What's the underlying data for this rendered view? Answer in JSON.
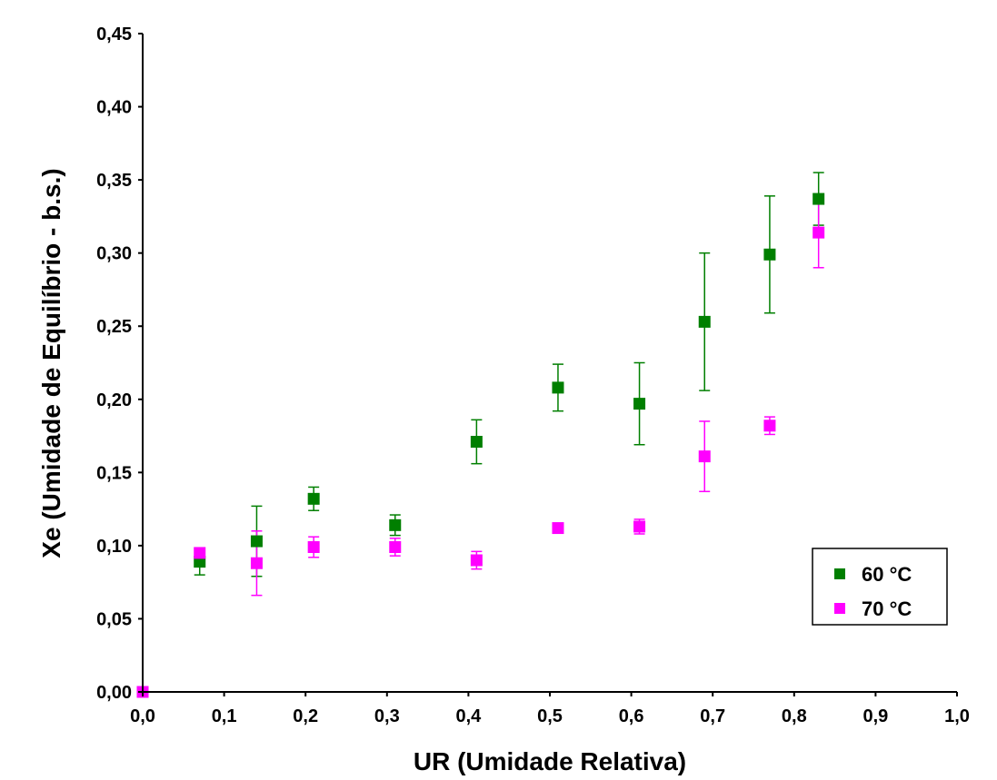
{
  "chart_data": {
    "type": "scatter",
    "title": "",
    "xlabel": "UR (Umidade Relativa)",
    "ylabel": "Xe (Umidade de Equilíbrio - b.s.)",
    "xlim": [
      0.0,
      1.0
    ],
    "ylim": [
      0.0,
      0.45
    ],
    "x_ticks": [
      "0,0",
      "0,1",
      "0,2",
      "0,3",
      "0,4",
      "0,5",
      "0,6",
      "0,7",
      "0,8",
      "0,9",
      "1,0"
    ],
    "y_ticks": [
      "0,00",
      "0,05",
      "0,10",
      "0,15",
      "0,20",
      "0,25",
      "0,30",
      "0,35",
      "0,40",
      "0,45"
    ],
    "grid": false,
    "legend_position": "bottom-right",
    "series": [
      {
        "name": "60 °C",
        "color": "#007f00",
        "points": [
          {
            "x": 0.0,
            "y": 0.0,
            "err": 0.0
          },
          {
            "x": 0.07,
            "y": 0.089,
            "err": 0.009
          },
          {
            "x": 0.14,
            "y": 0.103,
            "err": 0.024
          },
          {
            "x": 0.21,
            "y": 0.132,
            "err": 0.008
          },
          {
            "x": 0.31,
            "y": 0.114,
            "err": 0.007
          },
          {
            "x": 0.41,
            "y": 0.171,
            "err": 0.015
          },
          {
            "x": 0.51,
            "y": 0.208,
            "err": 0.016
          },
          {
            "x": 0.61,
            "y": 0.197,
            "err": 0.028
          },
          {
            "x": 0.69,
            "y": 0.253,
            "err": 0.047
          },
          {
            "x": 0.77,
            "y": 0.299,
            "err": 0.04
          },
          {
            "x": 0.83,
            "y": 0.337,
            "err": 0.018
          }
        ]
      },
      {
        "name": "70 °C",
        "color": "#ff00ff",
        "points": [
          {
            "x": 0.0,
            "y": 0.0,
            "err": 0.0
          },
          {
            "x": 0.07,
            "y": 0.095,
            "err": 0.0
          },
          {
            "x": 0.14,
            "y": 0.088,
            "err": 0.022
          },
          {
            "x": 0.21,
            "y": 0.099,
            "err": 0.007
          },
          {
            "x": 0.31,
            "y": 0.099,
            "err": 0.006
          },
          {
            "x": 0.41,
            "y": 0.09,
            "err": 0.006
          },
          {
            "x": 0.51,
            "y": 0.112,
            "err": 0.0
          },
          {
            "x": 0.61,
            "y": 0.113,
            "err": 0.005
          },
          {
            "x": 0.69,
            "y": 0.161,
            "err": 0.024
          },
          {
            "x": 0.77,
            "y": 0.182,
            "err": 0.006
          },
          {
            "x": 0.83,
            "y": 0.314,
            "err": 0.024
          }
        ]
      }
    ]
  }
}
